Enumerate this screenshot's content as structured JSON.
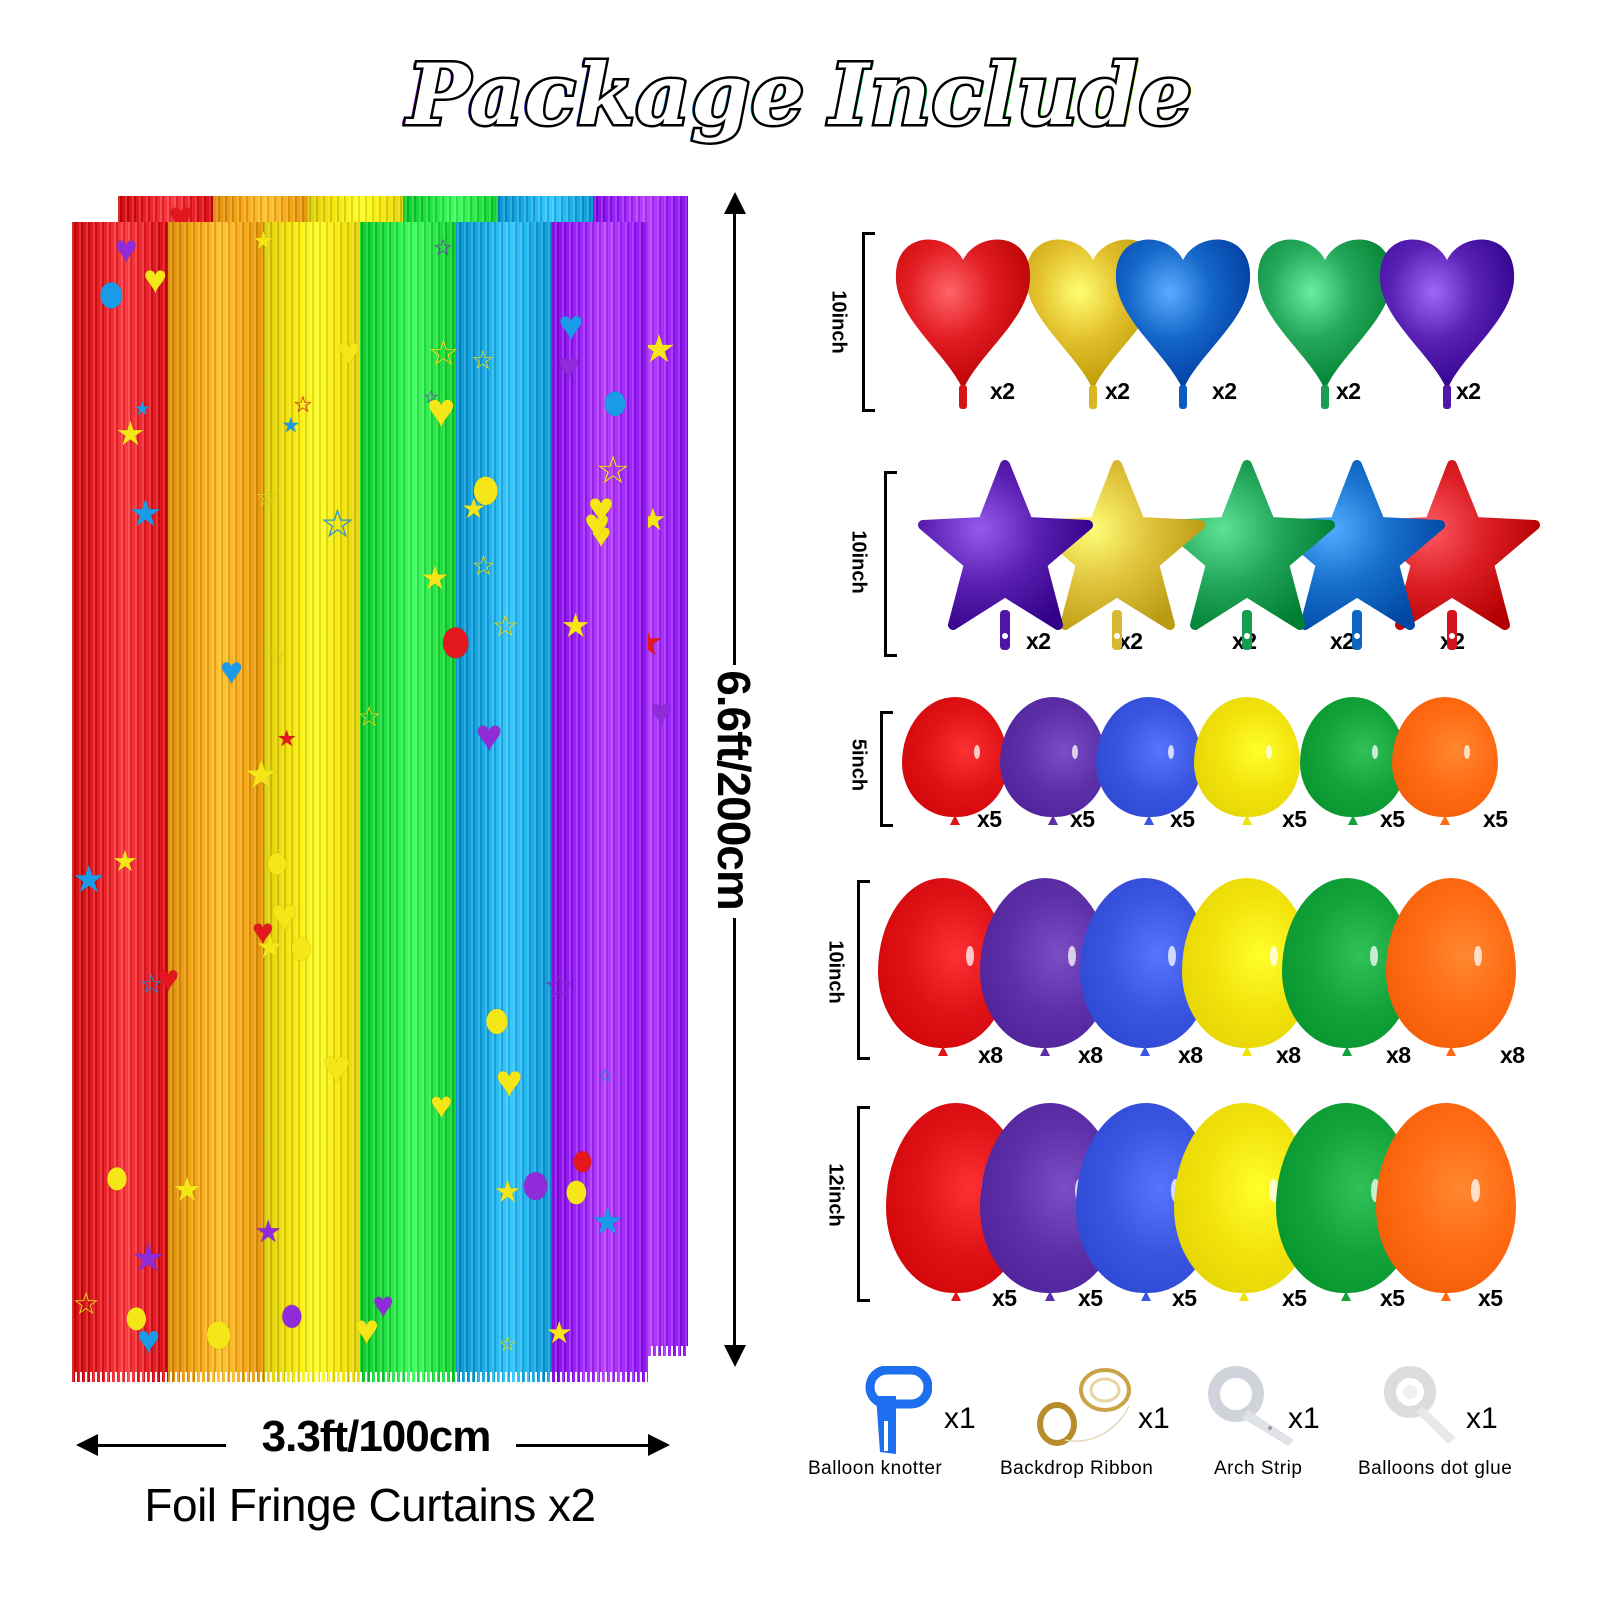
{
  "title": {
    "word1": "Package",
    "word2": "Include"
  },
  "curtain": {
    "height_label": "6.6ft/200cm",
    "width_label": "3.3ft/100cm",
    "caption": "Foil Fringe Curtains x2",
    "stripe_colors": [
      "#e8141b",
      "#f7a30b",
      "#f7e600",
      "#19e33a",
      "#0fa9e8",
      "#9a1aff"
    ]
  },
  "heart_foil": {
    "size": "10inch",
    "items": [
      {
        "color": "#e21d22",
        "qty": "x2"
      },
      {
        "color": "#e3c12c",
        "qty": "x2"
      },
      {
        "color": "#1466c9",
        "qty": "x2"
      },
      {
        "color": "#23a85a",
        "qty": "x2"
      },
      {
        "color": "#5a21b5",
        "qty": "x2"
      }
    ]
  },
  "star_foil": {
    "size": "10inch",
    "items": [
      {
        "color": "#5a1fb0",
        "qty": "x2"
      },
      {
        "color": "#e0c23b",
        "qty": "x2"
      },
      {
        "color": "#22a65a",
        "qty": "x2"
      },
      {
        "color": "#1670cc",
        "qty": "x2"
      },
      {
        "color": "#dc1f26",
        "qty": "x2"
      }
    ]
  },
  "latex_5": {
    "size": "5inch",
    "items": [
      {
        "color": "#df1216",
        "qty": "x5"
      },
      {
        "color": "#5d30a8",
        "qty": "x5"
      },
      {
        "color": "#3a56e0",
        "qty": "x5"
      },
      {
        "color": "#f2e20c",
        "qty": "x5"
      },
      {
        "color": "#14a23a",
        "qty": "x5"
      },
      {
        "color": "#ff6a13",
        "qty": "x5"
      }
    ]
  },
  "latex_10": {
    "size": "10inch",
    "items": [
      {
        "color": "#df1216",
        "qty": "x8"
      },
      {
        "color": "#5d30a8",
        "qty": "x8"
      },
      {
        "color": "#3a56e0",
        "qty": "x8"
      },
      {
        "color": "#f2e20c",
        "qty": "x8"
      },
      {
        "color": "#14a23a",
        "qty": "x8"
      },
      {
        "color": "#ff6a13",
        "qty": "x8"
      }
    ]
  },
  "latex_12": {
    "size": "12inch",
    "items": [
      {
        "color": "#df1216",
        "qty": "x5"
      },
      {
        "color": "#5d30a8",
        "qty": "x5"
      },
      {
        "color": "#3a56e0",
        "qty": "x5"
      },
      {
        "color": "#f2e20c",
        "qty": "x5"
      },
      {
        "color": "#14a23a",
        "qty": "x5"
      },
      {
        "color": "#ff6a13",
        "qty": "x5"
      }
    ]
  },
  "accessories": [
    {
      "label": "Balloon knotter",
      "qty": "x1",
      "icon": "knotter-icon"
    },
    {
      "label": "Backdrop Ribbon",
      "qty": "x1",
      "icon": "ribbon-icon"
    },
    {
      "label": "Arch Strip",
      "qty": "x1",
      "icon": "arch-strip-icon"
    },
    {
      "label": "Balloons dot glue",
      "qty": "x1",
      "icon": "glue-dots-icon"
    }
  ]
}
